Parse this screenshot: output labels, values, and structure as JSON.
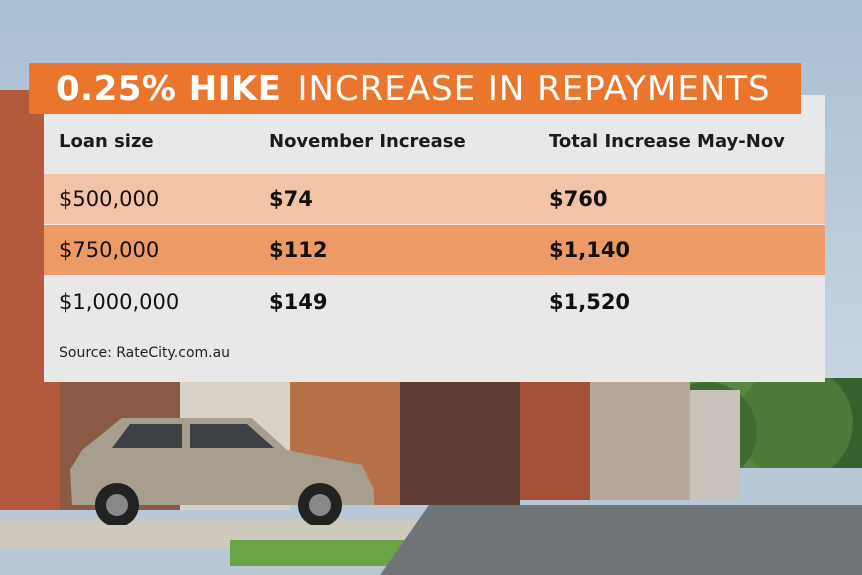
{
  "title_bold": "0.25% HIKE",
  "title_light": "INCREASE IN REPAYMENTS",
  "headers": [
    "Loan size",
    "November Increase",
    "Total Increase May-Nov"
  ],
  "rows": [
    {
      "loan": "$500,000",
      "november": "$74",
      "total": "$760"
    },
    {
      "loan": "$750,000",
      "november": "$112",
      "total": "$1,140"
    },
    {
      "loan": "$1,000,000",
      "november": "$149",
      "total": "$1,520"
    }
  ],
  "source": "Source: RateCity.com.au",
  "colors": {
    "banner": "#e9762c",
    "row1": "#f2c3a6",
    "row2": "#ec9a66",
    "row3": "#e8e8e8"
  }
}
